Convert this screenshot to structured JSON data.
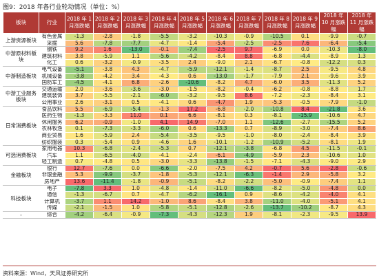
{
  "title": "图9：2018 年各行业轮动情况（单位：%）",
  "table": {
    "headers": [
      "板块",
      "行业",
      "2018 年 1 月涨跌幅",
      "2018 年 2 月涨跌幅",
      "2018 年 3 月涨跌幅",
      "2018 年 4 月涨跌幅",
      "2018 年 5 月涨跌幅",
      "2018 年 6 月涨跌幅",
      "2018 年 7 月涨跌幅",
      "2018 年 8 月涨跌幅",
      "2018 年 9 月涨跌幅",
      "2018 年 10 月涨跌幅",
      "2018 年 11 月涨跌幅"
    ],
    "groups": [
      {
        "sector": "上游资源板块",
        "rows": [
          {
            "industry": "有色金属",
            "values": [
              "-1.3",
              "-2.8",
              "-1.8",
              "-5.5",
              "-3.2",
              "-10.3",
              "-0.9",
              "-10.5",
              "0.1",
              "-9.9",
              "-0.7"
            ]
          },
          {
            "industry": "采掘",
            "values": [
              "5.6",
              "-7.8",
              "-7.7",
              "-4.7",
              "-1.4",
              "-5.4",
              "-2.5",
              "-2.5",
              "7.6",
              "-6.4",
              "-5.4"
            ]
          }
        ]
      },
      {
        "sector": "中游原材料板块",
        "rows": [
          {
            "industry": "钢铁",
            "values": [
              "9.2",
              "1.6",
              "-13.0",
              "-0.1",
              "-7.4",
              "-2.5",
              "9.7",
              "-6.9",
              "0.0",
              "-10.3",
              "-8.0"
            ]
          },
          {
            "industry": "建筑材料",
            "values": [
              "3.8",
              "-5.9",
              "1.1",
              "-5.6",
              "-4.2",
              "-8.4",
              "8.8",
              "-6.8",
              "-4.4",
              "-8.9",
              "1.3"
            ]
          },
          {
            "industry": "化工",
            "values": [
              "0.6",
              "-3.2",
              "-0.9",
              "-3.5",
              "2.4",
              "-9.0",
              "2.1",
              "-6.7",
              "-0.8",
              "-12.2",
              "0.3"
            ]
          }
        ]
      },
      {
        "sector": "中游制造板块",
        "rows": [
          {
            "industry": "电气设备",
            "values": [
              "-5.1",
              "-3.8",
              "4.3",
              "-4.7",
              "-5.9",
              "-12.1",
              "-1.4",
              "-8.7",
              "2.5",
              "-9.5",
              "4.8"
            ]
          },
          {
            "industry": "机械设备",
            "values": [
              "-3.8",
              "-4.2",
              "3.4",
              "-4.3",
              "0.6",
              "-13.0",
              "-1.7",
              "-7.9",
              "2.1",
              "-9.6",
              "3.9"
            ]
          },
          {
            "industry": "国防军工",
            "values": [
              "-4.5",
              "-4.1",
              "6.8",
              "-2.6",
              "-10.6",
              "-8.2",
              "4.7",
              "-6.0",
              "3.5",
              "-11.3",
              "5.2"
            ]
          }
        ]
      },
      {
        "sector": "中游工业服务板块",
        "rows": [
          {
            "industry": "交通运输",
            "values": [
              "2.0",
              "-3.6",
              "-3.6",
              "-3.0",
              "-1.5",
              "-8.2",
              "-0.4",
              "-6.2",
              "-0.8",
              "-8.8",
              "1.7"
            ]
          },
          {
            "industry": "建筑装饰",
            "values": [
              "3.7",
              "-5.5",
              "-2.1",
              "-6.0",
              "-3.2",
              "-9.5",
              "8.6",
              "-7.2",
              "-2.3",
              "-8.4",
              "3.1"
            ]
          },
          {
            "industry": "公用事业",
            "values": [
              "2.6",
              "-3.1",
              "0.5",
              "-4.1",
              "0.6",
              "-4.7",
              "1.9",
              "-5.3",
              "-0.5",
              "-7.9",
              "-1.0"
            ]
          }
        ]
      },
      {
        "sector": "日常消费板块",
        "rows": [
          {
            "industry": "食品饮料",
            "values": [
              "5.5",
              "-6.9",
              "-5.4",
              "-1.3",
              "17.2",
              "-6.8",
              "-2.0",
              "-10.8",
              "8.4",
              "-21.8",
              "3.6"
            ]
          },
          {
            "industry": "医药生物",
            "values": [
              "-1.3",
              "-3.3",
              "11.0",
              "0.1",
              "6.6",
              "-8.1",
              "0.3",
              "-8.1",
              "-15.9",
              "-10.6",
              "4.7"
            ]
          },
          {
            "industry": "休闲服务",
            "values": [
              "6.2",
              "-0.9",
              "-1.0",
              "4.1",
              "14.9",
              "-7.0",
              "1.1",
              "-12.6",
              "-2.7",
              "-15.5",
              "5.2"
            ]
          },
          {
            "industry": "农林牧渔",
            "values": [
              "0.1",
              "-7.3",
              "-3.3",
              "-6.0",
              "0.6",
              "-13.3",
              "0.7",
              "-8.9",
              "-3.0",
              "-7.4",
              "8.6"
            ]
          },
          {
            "industry": "商业贸易",
            "values": [
              "1.6",
              "-5.9",
              "2.4",
              "-5.4",
              "-3.5",
              "-9.5",
              "-1.0",
              "-8.0",
              "-2.4",
              "-8.4",
              "3.9"
            ]
          },
          {
            "industry": "纺织服装",
            "values": [
              "0.3",
              "-5.4",
              "0.9",
              "-4.6",
              "1.6",
              "-10.1",
              "-1.2",
              "-10.9",
              "-5.2",
              "-8.1",
              "1.9"
            ]
          }
        ]
      },
      {
        "sector": "可选消费板块",
        "rows": [
          {
            "industry": "家用电器",
            "values": [
              "10.3",
              "-6.8",
              "-2.4",
              "-5.3",
              "0.7",
              "-12.1",
              "-3.8",
              "-6.8",
              "4.5",
              "-11.5",
              "-0.1"
            ]
          },
          {
            "industry": "汽车",
            "values": [
              "1.1",
              "-6.5",
              "-4.0",
              "-4.1",
              "-2.4",
              "-6.1",
              "-4.9",
              "-5.9",
              "2.3",
              "-10.6",
              "1.0"
            ]
          },
          {
            "industry": "轻工制造",
            "values": [
              "0.7",
              "-4.8",
              "0.5",
              "-3.0",
              "-3.3",
              "-13.8",
              "-1.5",
              "-7.1",
              "-4.3",
              "-9.0",
              "2.9"
            ]
          }
        ]
      },
      {
        "sector": "金融板块",
        "rows": [
          {
            "industry": "银行",
            "values": [
              "12.7",
              "-7.6",
              "0.0",
              "-6.6",
              "-2.0",
              "-7.5",
              "4.2",
              "-0.7",
              "5.6",
              "-2.8",
              "-0.6"
            ]
          },
          {
            "industry": "非银金融",
            "values": [
              "5.3",
              "-9.9",
              "-3.7",
              "-1.8",
              "-5.3",
              "-12.1",
              "-6.3",
              "-1.4",
              "2.9",
              "-5.8",
              "3.2"
            ]
          },
          {
            "industry": "房地产",
            "values": [
              "13.6",
              "-11.4",
              "-1.8",
              "-0.9",
              "-5.1",
              "-8.2",
              "-2.2",
              "-5.0",
              "-0.9",
              "-7.4",
              "1.1"
            ]
          }
        ]
      },
      {
        "sector": "科技板块",
        "rows": [
          {
            "industry": "电子",
            "values": [
              "-7.8",
              "3.3",
              "1.0",
              "-4.8",
              "-1.4",
              "-11.0",
              "-6.6",
              "-8.2",
              "-5.0",
              "-4.8",
              "0.0"
            ]
          },
          {
            "industry": "通信",
            "values": [
              "-1.3",
              "-6.7",
              "0.7",
              "-4.7",
              "-6.2",
              "-16.1",
              "0.9",
              "-8.6",
              "-4.2",
              "-4.0",
              "4.1"
            ]
          },
          {
            "industry": "计算机",
            "values": [
              "-3.7",
              "1.1",
              "14.2",
              "-1.0",
              "8.6",
              "-8.4",
              "3.8",
              "-11.0",
              "-4.0",
              "-5.1",
              "4.1"
            ]
          },
          {
            "industry": "传媒",
            "values": [
              "-2.1",
              "-1.5",
              "1.0",
              "-5.8",
              "-5.1",
              "-12.8",
              "-2.6",
              "-13.7",
              "-10.2",
              "-8.7",
              "4.3"
            ]
          }
        ]
      },
      {
        "sector": "-",
        "rows": [
          {
            "industry": "综合",
            "values": [
              "-4.2",
              "-6.4",
              "-0.9",
              "-7.3",
              "-4.3",
              "-12.3",
              "1.9",
              "-8.1",
              "-2.3",
              "-9.5",
              "13.9"
            ]
          }
        ]
      }
    ]
  },
  "source": "资料来源：Wind，天风证券研究所"
}
